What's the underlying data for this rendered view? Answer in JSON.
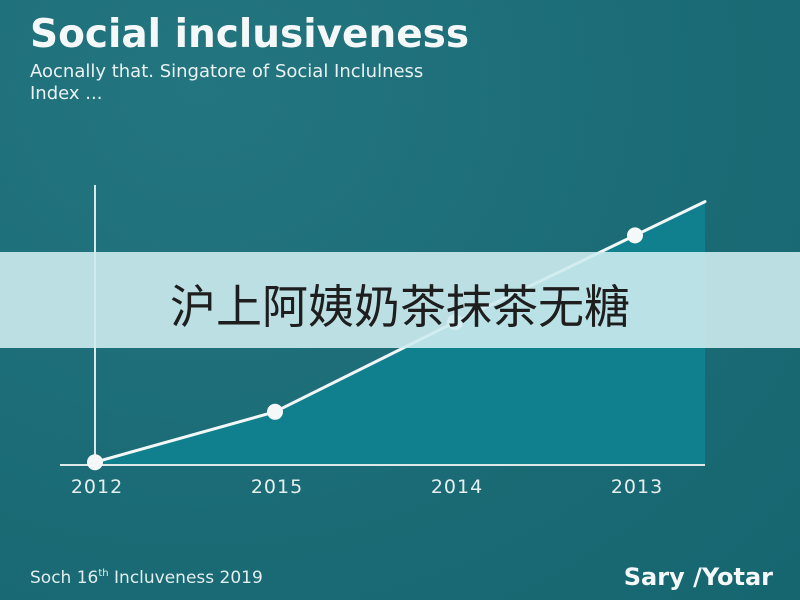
{
  "chart_data": {
    "type": "area",
    "title": "Social inclusiveness",
    "subtitle": [
      "Aocnally that. Singatore of Social Inclulness",
      "Index ..."
    ],
    "categories": [
      "2012",
      "2015",
      "2014",
      "2013"
    ],
    "series": [
      {
        "values": [
          0.01,
          0.19,
          0.51,
          0.82
        ]
      }
    ],
    "xlabel": "",
    "ylabel": "",
    "ylim": [
      0,
      1
    ],
    "markers": true,
    "grid": false,
    "legend": "none"
  },
  "banner": {
    "text": "沪上阿姨奶茶抹茶无糖"
  },
  "footer": {
    "source": {
      "prefix": "Soch 16",
      "superscript": "th",
      "suffix": " Incluveness 2019"
    },
    "brand": "Sary /Yotar"
  },
  "colors": {
    "background": "#1a6b75",
    "background_light": "#23757f",
    "area_fill": "#10808e",
    "line": "#f2f7f7",
    "marker": "#f5f8f8",
    "axis": "#dde8e9",
    "tick_text": "#e6eeee"
  }
}
